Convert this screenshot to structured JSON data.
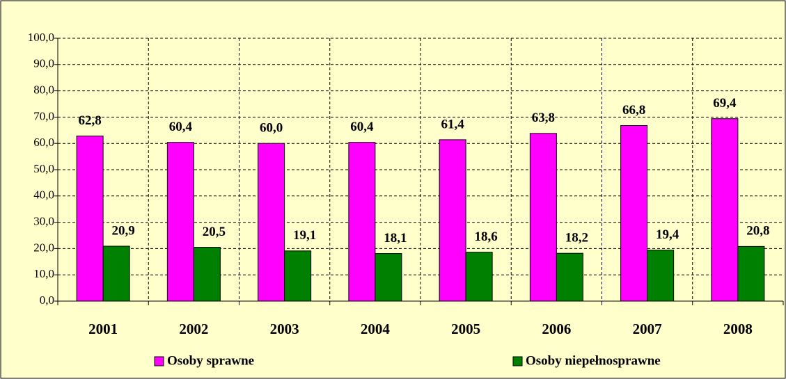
{
  "chart_data": {
    "type": "bar",
    "categories": [
      "2001",
      "2002",
      "2003",
      "2004",
      "2005",
      "2006",
      "2007",
      "2008"
    ],
    "series": [
      {
        "name": "Osoby sprawne",
        "color": "#ff00ff",
        "values": [
          62.8,
          60.4,
          60.0,
          60.4,
          61.4,
          63.8,
          66.8,
          69.4
        ],
        "value_labels": [
          "62,8",
          "60,4",
          "60,0",
          "60,4",
          "61,4",
          "63,8",
          "66,8",
          "69,4"
        ]
      },
      {
        "name": "Osoby niepełnosprawne",
        "color": "#008000",
        "values": [
          20.9,
          20.5,
          19.1,
          18.1,
          18.6,
          18.2,
          19.4,
          20.8
        ],
        "value_labels": [
          "20,9",
          "20,5",
          "19,1",
          "18,1",
          "18,6",
          "18,2",
          "19,4",
          "20,8"
        ]
      }
    ],
    "ylim": [
      0,
      100
    ],
    "yticks": [
      {
        "value": 0,
        "label": "0,0"
      },
      {
        "value": 10,
        "label": "10,0"
      },
      {
        "value": 20,
        "label": "20,0"
      },
      {
        "value": 30,
        "label": "30,0"
      },
      {
        "value": 40,
        "label": "40,0"
      },
      {
        "value": 50,
        "label": "50,0"
      },
      {
        "value": 60,
        "label": "60,0"
      },
      {
        "value": 70,
        "label": "70,0"
      },
      {
        "value": 80,
        "label": "80,0"
      },
      {
        "value": 90,
        "label": "90,0"
      },
      {
        "value": 100,
        "label": "100,0"
      }
    ],
    "grid": true,
    "legend": "bottom"
  }
}
